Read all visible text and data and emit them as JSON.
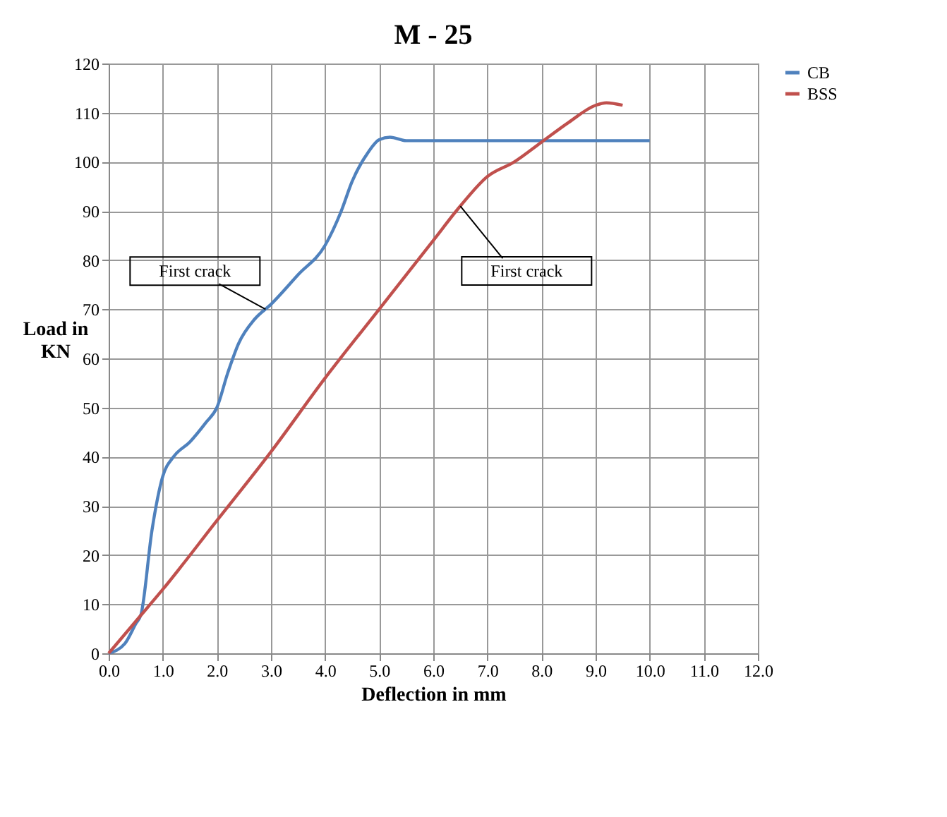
{
  "chart_data": {
    "type": "line",
    "title": "M - 25",
    "xlabel": "Deflection in mm",
    "ylabel": "Load in\nKN",
    "xlim": [
      0,
      12
    ],
    "ylim": [
      0,
      120
    ],
    "xticks": [
      {
        "value": 0,
        "label": "0.0"
      },
      {
        "value": 1,
        "label": "1.0"
      },
      {
        "value": 2,
        "label": "2.0"
      },
      {
        "value": 3,
        "label": "3.0"
      },
      {
        "value": 4,
        "label": "4.0"
      },
      {
        "value": 5,
        "label": "5.0"
      },
      {
        "value": 6,
        "label": "6.0"
      },
      {
        "value": 7,
        "label": "7.0"
      },
      {
        "value": 8,
        "label": "8.0"
      },
      {
        "value": 9,
        "label": "9.0"
      },
      {
        "value": 10,
        "label": "10.0"
      },
      {
        "value": 11,
        "label": "11.0"
      },
      {
        "value": 12,
        "label": "12.0"
      }
    ],
    "yticks": [
      0,
      10,
      20,
      30,
      40,
      50,
      60,
      70,
      80,
      90,
      100,
      110,
      120
    ],
    "grid": true,
    "legend": "right",
    "marker": "none",
    "line_style": "solid",
    "series": [
      {
        "name": "CB",
        "color": "#4f81bd",
        "x": [
          0,
          0.3,
          0.5,
          0.6,
          0.8,
          1.0,
          1.2,
          1.5,
          1.8,
          2.0,
          2.2,
          2.4,
          2.7,
          3.0,
          3.5,
          4.0,
          4.3,
          4.5,
          4.8,
          5.0,
          5.2,
          5.5,
          6.0,
          8.0,
          10.0
        ],
        "values": [
          0,
          2,
          6,
          8,
          25,
          36,
          40,
          43,
          47,
          50,
          57,
          63,
          68,
          71,
          77,
          83,
          90,
          96,
          102,
          104.5,
          105,
          104.3,
          104.3,
          104.3,
          104.3
        ]
      },
      {
        "name": "BSS",
        "color": "#c0504d",
        "x": [
          0,
          0.5,
          1,
          2,
          3,
          4,
          5,
          6,
          6.5,
          7,
          7.5,
          8,
          8.5,
          9.0,
          9.2,
          9.5
        ],
        "values": [
          0,
          6.5,
          13,
          27,
          41,
          56,
          70,
          84,
          91,
          97,
          100,
          104,
          108,
          111.5,
          112,
          111.5
        ]
      }
    ],
    "annotations": [
      {
        "text": "First crack",
        "x": 2.9,
        "y": 70
      },
      {
        "text": "First crack",
        "x": 6.5,
        "y": 91
      }
    ]
  }
}
